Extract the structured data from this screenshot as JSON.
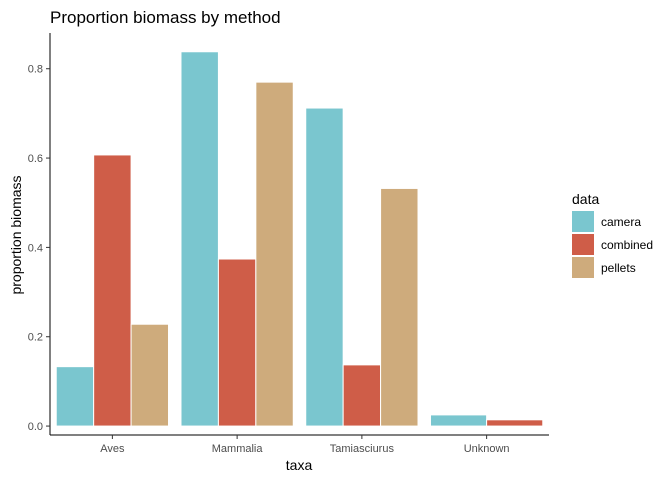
{
  "chart_data": {
    "type": "bar",
    "title": "Proportion biomass by method",
    "xlabel": "taxa",
    "ylabel": "proportion biomass",
    "categories": [
      "Aves",
      "Mammalia",
      "Tamiasciurus",
      "Unknown"
    ],
    "series": [
      {
        "name": "camera",
        "color": "#7ac6cf",
        "values": [
          0.133,
          0.838,
          0.712,
          0.025
        ]
      },
      {
        "name": "combined",
        "color": "#cf5d48",
        "values": [
          0.607,
          0.374,
          0.137,
          0.014
        ]
      },
      {
        "name": "pellets",
        "color": "#ceab7c",
        "values": [
          0.228,
          0.77,
          0.532,
          null
        ]
      }
    ],
    "ylim": [
      -0.02,
      0.88
    ],
    "yticks": [
      "0.0",
      "0.2",
      "0.4",
      "0.6",
      "0.8"
    ],
    "grid": false,
    "legend": {
      "title": "data",
      "position": "right"
    }
  }
}
